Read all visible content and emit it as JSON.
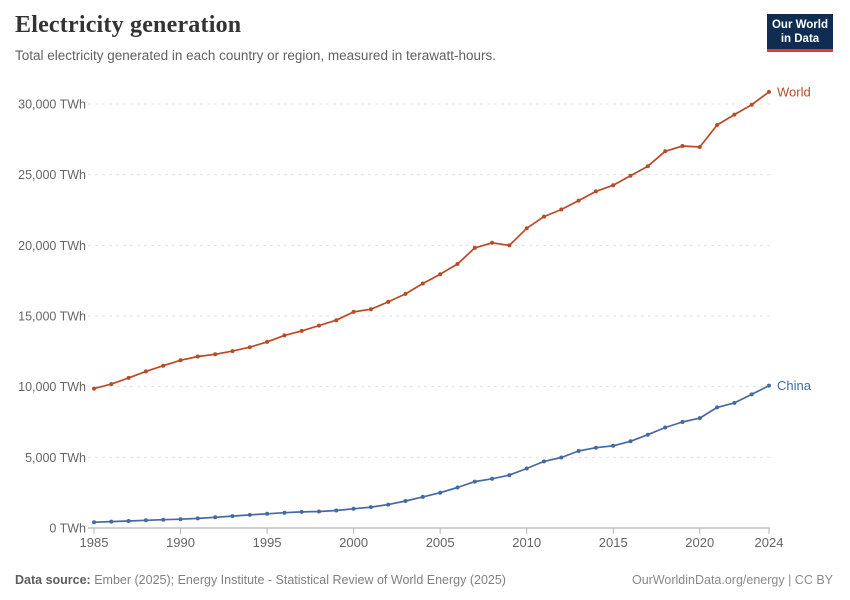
{
  "header": {
    "title": "Electricity generation",
    "subtitle": "Total electricity generated in each country or region, measured in terawatt-hours.",
    "logo": {
      "line1": "Our World",
      "line2": "in Data"
    }
  },
  "footer": {
    "datasource_label": "Data source:",
    "datasource_text": "Ember (2025); Energy Institute - Statistical Review of World Energy (2025)",
    "link_text": "OurWorldinData.org/energy | CC BY"
  },
  "colors": {
    "world_series": "#b94a26",
    "china_series": "#4569a3",
    "grid": "#e0e0e0",
    "axis": "#a3a3a3",
    "tick": "#b5b5b5",
    "axis_text": "#666666",
    "logo_bg": "#0f2d52",
    "logo_stripe": "#e23c31"
  },
  "chart_data": {
    "type": "line",
    "title": "Electricity generation",
    "unit": "TWh",
    "grid": "horizontal-dashed",
    "legend": "line-end-labels",
    "xlim": [
      1985,
      2024
    ],
    "ylim": [
      0,
      31000
    ],
    "x_ticks": [
      1985,
      1990,
      1995,
      2000,
      2005,
      2010,
      2015,
      2020,
      2024
    ],
    "y_ticks": [
      0,
      5000,
      10000,
      15000,
      20000,
      25000,
      30000
    ],
    "y_tick_labels": [
      "0 TWh",
      "5,000 TWh",
      "10,000 TWh",
      "15,000 TWh",
      "20,000 TWh",
      "25,000 TWh",
      "30,000 TWh"
    ],
    "x": [
      1985,
      1986,
      1987,
      1988,
      1989,
      1990,
      1991,
      1992,
      1993,
      1994,
      1995,
      1996,
      1997,
      1998,
      1999,
      2000,
      2001,
      2002,
      2003,
      2004,
      2005,
      2006,
      2007,
      2008,
      2009,
      2010,
      2011,
      2012,
      2013,
      2014,
      2015,
      2016,
      2017,
      2018,
      2019,
      2020,
      2021,
      2022,
      2023,
      2024
    ],
    "series": [
      {
        "name": "World",
        "color": "#b94a26",
        "values": [
          9866,
          10182,
          10617,
          11083,
          11480,
          11869,
          12131,
          12292,
          12518,
          12789,
          13168,
          13629,
          13944,
          14318,
          14701,
          15293,
          15483,
          15998,
          16566,
          17298,
          17961,
          18680,
          19820,
          20181,
          19994,
          21207,
          22031,
          22538,
          23168,
          23816,
          24255,
          24917,
          25596,
          26653,
          27028,
          26958,
          28512,
          29247,
          29949,
          30856
        ]
      },
      {
        "name": "China",
        "color": "#4569a3",
        "values": [
          411,
          451,
          497,
          545,
          585,
          621,
          678,
          754,
          840,
          928,
          1007,
          1081,
          1136,
          1167,
          1239,
          1356,
          1481,
          1654,
          1911,
          2203,
          2500,
          2866,
          3282,
          3482,
          3742,
          4207,
          4713,
          4988,
          5447,
          5680,
          5815,
          6133,
          6604,
          7111,
          7503,
          7779,
          8534,
          8848,
          9456,
          10073
        ]
      }
    ]
  }
}
